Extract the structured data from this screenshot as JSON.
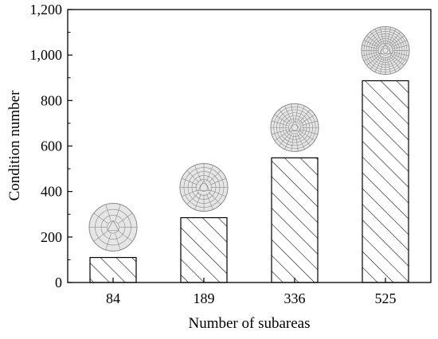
{
  "chart_data": {
    "type": "bar",
    "xlabel": "Number of subareas",
    "ylabel": "Condition number",
    "categories": [
      "84",
      "189",
      "336",
      "525"
    ],
    "values": [
      110,
      285,
      548,
      887
    ],
    "ylim": [
      0,
      1200
    ],
    "yticks": [
      "0",
      "200",
      "400",
      "600",
      "800",
      "1,000",
      "1,200"
    ],
    "ytick_values": [
      0,
      200,
      400,
      600,
      800,
      1000,
      1200
    ],
    "bar_fill": "hatched",
    "legend": "none",
    "grid": false,
    "insets": [
      {
        "category": "84",
        "icon": "circular-mesh-icon"
      },
      {
        "category": "189",
        "icon": "circular-mesh-icon"
      },
      {
        "category": "336",
        "icon": "circular-mesh-icon"
      },
      {
        "category": "525",
        "icon": "circular-mesh-icon"
      }
    ],
    "colors": {
      "bar_stroke": "#000000",
      "mesh_fill": "#e6e6e6",
      "mesh_stroke": "#8a8a8a"
    }
  }
}
